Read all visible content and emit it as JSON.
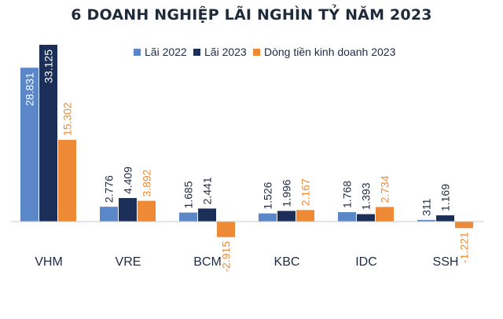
{
  "chart_data": {
    "type": "bar",
    "title": "6 DOANH NGHIỆP LÃI NGHÌN TỶ NĂM 2023",
    "categories": [
      "VHM",
      "VRE",
      "BCM",
      "KBC",
      "IDC",
      "SSH"
    ],
    "series": [
      {
        "name": "Lãi 2022",
        "color": "#5b86c7",
        "values": [
          28831,
          2776,
          1685,
          1526,
          1768,
          311
        ],
        "labels": [
          "28.831",
          "2.776",
          "1.685",
          "1.526",
          "1.768",
          "311"
        ]
      },
      {
        "name": "Lãi 2023",
        "color": "#1b2f58",
        "values": [
          33125,
          4409,
          2441,
          1996,
          1393,
          1169
        ],
        "labels": [
          "33.125",
          "4.409",
          "2.441",
          "1.996",
          "1.393",
          "1.169"
        ]
      },
      {
        "name": "Dòng tiền kinh doanh 2023",
        "color": "#ee8a35",
        "values": [
          15302,
          3892,
          -2915,
          2167,
          2734,
          -1221
        ],
        "labels": [
          "15.302",
          "3.892",
          "-2.915",
          "2.167",
          "2.734",
          "-1.221"
        ]
      }
    ],
    "xlabel": "",
    "ylabel": "",
    "ylim": [
      -3200,
      33200
    ],
    "grid": false,
    "legend": "top-right"
  }
}
